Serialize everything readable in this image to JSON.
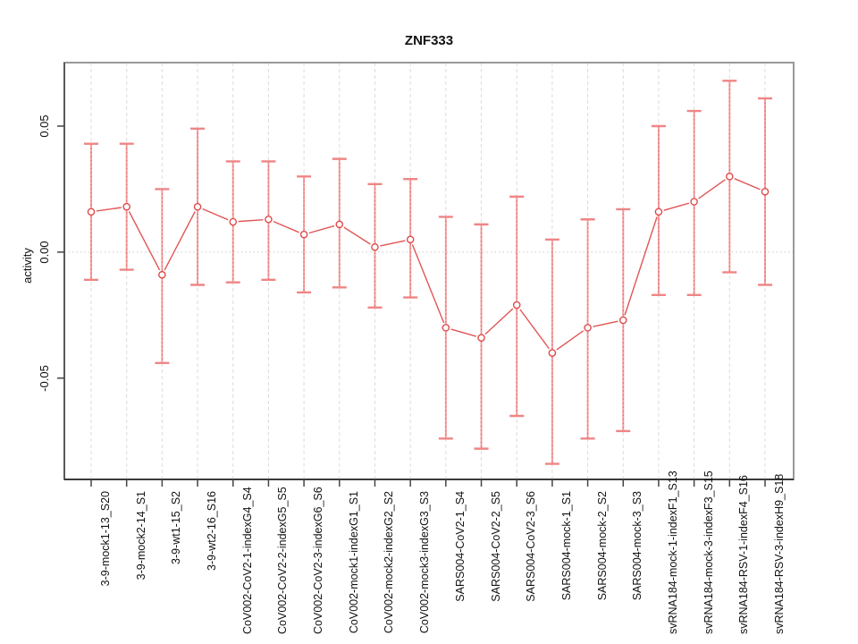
{
  "colors": {
    "series_line": "#e25555",
    "point_stroke": "#e04b4b",
    "point_fill": "#ffffff",
    "error_bar": "#f2a0a0",
    "error_bar_dots": "#e86060",
    "error_cap": "#ef8585",
    "gridline": "#dcdcdc",
    "zero_line": "#c9c9c9",
    "plot_border": "#999999",
    "axis": "#444444",
    "text": "#111111"
  },
  "chart_data": {
    "type": "line",
    "title": "ZNF333",
    "xlabel": "",
    "ylabel": "activity",
    "legend": "none",
    "grid": "vertical-dashed-at-each-category-plus-dotted-zero-line",
    "point_style": "open-circle-with-error-bars",
    "categories": [
      "3-9-mock1-13_S20",
      "3-9-mock2-14_S1",
      "3-9-wt1-15_S2",
      "3-9-wt2-16_S16",
      "CoV002-CoV2-1-indexG4_S4",
      "CoV002-CoV2-2-indexG5_S5",
      "CoV002-CoV2-3-indexG6_S6",
      "CoV002-mock1-indexG1_S1",
      "CoV002-mock2-indexG2_S2",
      "CoV002-mock3-indexG3_S3",
      "SARS004-CoV2-1_S4",
      "SARS004-CoV2-2_S5",
      "SARS004-CoV2-3_S6",
      "SARS004-mock-1_S1",
      "SARS004-mock-2_S2",
      "SARS004-mock-3_S3",
      "svRNA184-mock-1-indexF1_S13",
      "svRNA184-mock-3-indexF3_S15",
      "svRNA184-RSV-1-indexF4_S16",
      "svRNA184-RSV-3-indexH9_S18"
    ],
    "series": [
      {
        "name": "activity",
        "values": [
          0.016,
          0.018,
          -0.009,
          0.018,
          0.012,
          0.013,
          0.007,
          0.011,
          0.002,
          0.005,
          -0.03,
          -0.034,
          -0.021,
          -0.04,
          -0.03,
          -0.027,
          0.016,
          0.02,
          0.03,
          0.024
        ],
        "error_low": [
          -0.011,
          -0.007,
          -0.044,
          -0.013,
          -0.012,
          -0.011,
          -0.016,
          -0.014,
          -0.022,
          -0.018,
          -0.074,
          -0.078,
          -0.065,
          -0.084,
          -0.074,
          -0.071,
          -0.017,
          -0.017,
          -0.008,
          -0.013
        ],
        "error_high": [
          0.043,
          0.043,
          0.025,
          0.049,
          0.036,
          0.036,
          0.03,
          0.037,
          0.027,
          0.029,
          0.014,
          0.011,
          0.022,
          0.005,
          0.013,
          0.017,
          0.05,
          0.056,
          0.068,
          0.061
        ]
      }
    ],
    "yticks": [
      -0.05,
      0.0,
      0.05
    ],
    "ytick_labels": [
      "-0.05",
      "0.00",
      "0.05"
    ],
    "ylim": [
      -0.0902,
      0.0752
    ]
  }
}
